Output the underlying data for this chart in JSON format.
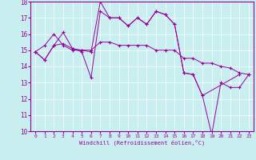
{
  "xlabel": "Windchill (Refroidissement éolien,°C)",
  "bg_color": "#c8eef0",
  "line_color": "#990099",
  "xlim": [
    -0.5,
    23.5
  ],
  "ylim": [
    10,
    18
  ],
  "yticks": [
    10,
    11,
    12,
    13,
    14,
    15,
    16,
    17,
    18
  ],
  "xticks": [
    0,
    1,
    2,
    3,
    4,
    5,
    6,
    7,
    8,
    9,
    10,
    11,
    12,
    13,
    14,
    15,
    16,
    17,
    18,
    19,
    20,
    21,
    22,
    23
  ],
  "series1_x": [
    0,
    1,
    2,
    3,
    4,
    5,
    6,
    7,
    8,
    9,
    10,
    11,
    12,
    13,
    14,
    15,
    16,
    17,
    18,
    19,
    20,
    21,
    22,
    23
  ],
  "series1_y": [
    14.9,
    14.4,
    15.3,
    15.4,
    15.1,
    14.9,
    13.3,
    17.4,
    17.0,
    17.0,
    16.5,
    17.0,
    16.6,
    17.4,
    17.2,
    16.6,
    13.6,
    13.5,
    12.2,
    9.8,
    13.0,
    12.7,
    12.7,
    13.5
  ],
  "series2_x": [
    0,
    1,
    2,
    3,
    4,
    5,
    6,
    7,
    8,
    9,
    10,
    11,
    12,
    13,
    14,
    15,
    16,
    17,
    18,
    19,
    20,
    21,
    22,
    23
  ],
  "series2_y": [
    14.9,
    15.3,
    16.0,
    15.3,
    15.0,
    15.0,
    15.0,
    15.5,
    15.5,
    15.3,
    15.3,
    15.3,
    15.3,
    15.0,
    15.0,
    15.0,
    14.5,
    14.5,
    14.2,
    14.2,
    14.0,
    13.9,
    13.6,
    13.5
  ],
  "series3_x": [
    0,
    1,
    2,
    3,
    4,
    5,
    6,
    7,
    8,
    9,
    10,
    11,
    12,
    13,
    14,
    15,
    16,
    17,
    18,
    22
  ],
  "series3_y": [
    14.9,
    14.4,
    15.3,
    16.1,
    15.1,
    15.0,
    14.9,
    18.0,
    17.0,
    17.0,
    16.5,
    17.0,
    16.6,
    17.4,
    17.2,
    16.6,
    13.6,
    13.5,
    12.2,
    13.5
  ]
}
